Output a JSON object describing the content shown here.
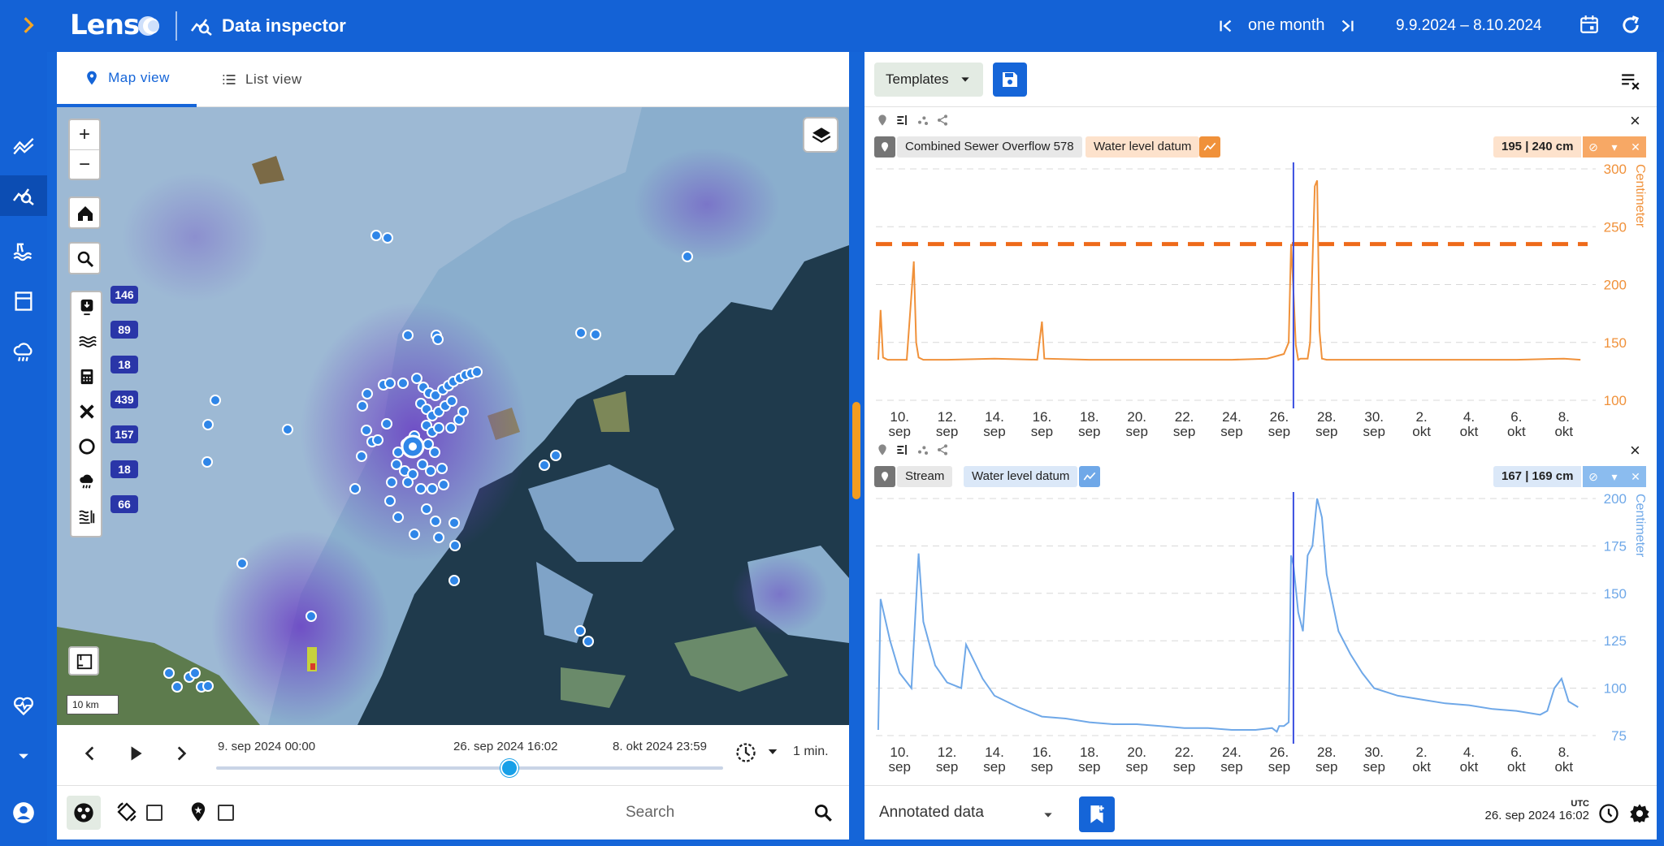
{
  "header": {
    "app_name": "Lens",
    "module_title": "Data inspector",
    "period_label": "one month",
    "date_range": "9.9.2024 – 8.10.2024"
  },
  "sidebar": {
    "items": [
      {
        "icon": "expand-chevron-icon"
      },
      {
        "icon": "trend-icon"
      },
      {
        "icon": "data-inspector-icon",
        "active": true
      },
      {
        "icon": "water-icon"
      },
      {
        "icon": "panel-icon"
      },
      {
        "icon": "rain-cloud-icon"
      },
      {
        "icon": "health-icon"
      },
      {
        "icon": "dropdown-icon"
      },
      {
        "icon": "account-icon"
      }
    ]
  },
  "left": {
    "tabs": [
      {
        "label": "Map view",
        "active": true
      },
      {
        "label": "List view",
        "active": false
      }
    ],
    "map": {
      "zoom_in": "+",
      "zoom_out": "−",
      "layer_counts": [
        "146",
        "89",
        "18",
        "439",
        "157",
        "18",
        "66"
      ],
      "scale": "10 km"
    },
    "timeline": {
      "start": "9. sep 2024 00:00",
      "current": "26. sep 2024 16:02",
      "end": "8. okt 2024 23:59",
      "position": 0.58,
      "step": "1 min."
    },
    "search_placeholder": "Search"
  },
  "right": {
    "templates_label": "Templates",
    "charts": [
      {
        "station": "Combined Sewer Overflow 578",
        "parameter": "Water level datum",
        "readout": "195 | 240 cm",
        "color": "#f0913a",
        "unit": "Centimeter"
      },
      {
        "station": "Stream",
        "parameter": "Water level datum",
        "readout": "167 | 169 cm",
        "color": "#6fa8e8",
        "unit": "Centimeter"
      }
    ],
    "annotated_label": "Annotated data",
    "tz": "UTC",
    "current_time": "26. sep 2024 16:02"
  },
  "chart_data": [
    {
      "type": "line",
      "ylabel": "Centimeter",
      "ylim": [
        100,
        300
      ],
      "yticks": [
        100,
        150,
        200,
        250,
        300
      ],
      "xticks": [
        "10. sep",
        "12. sep",
        "14. sep",
        "16. sep",
        "18. sep",
        "20. sep",
        "22. sep",
        "24. sep",
        "26. sep",
        "28. sep",
        "30. sep",
        "2. okt",
        "4. okt",
        "6. okt",
        "8. okt"
      ],
      "threshold": 235,
      "grid": true,
      "series": [
        {
          "x": [
            9.1,
            9.2,
            9.3,
            9.5,
            10.0,
            10.3,
            10.6,
            10.7,
            10.8,
            11.0,
            12.0,
            14.0,
            15.8,
            16.0,
            16.1,
            18.0,
            20.0,
            22.0,
            24.0,
            25.5,
            26.2,
            26.4,
            26.5,
            26.6,
            26.7,
            26.8,
            26.9,
            27.2,
            27.3,
            27.5,
            27.6,
            27.7,
            27.8,
            28.0,
            30.0,
            32.0,
            34.0,
            36.0,
            38.0,
            38.7
          ],
          "y": [
            135,
            178,
            137,
            135,
            135,
            135,
            220,
            150,
            137,
            135,
            135,
            136,
            135,
            168,
            136,
            135,
            135,
            135,
            135,
            136,
            140,
            150,
            235,
            195,
            148,
            135,
            136,
            136,
            150,
            285,
            290,
            160,
            136,
            135,
            135,
            135,
            135,
            135,
            136,
            135
          ]
        }
      ]
    },
    {
      "type": "line",
      "ylabel": "Centimeter",
      "ylim": [
        75,
        200
      ],
      "yticks": [
        75,
        100,
        125,
        150,
        175,
        200
      ],
      "xticks": [
        "10. sep",
        "12. sep",
        "14. sep",
        "16. sep",
        "18. sep",
        "20. sep",
        "22. sep",
        "24. sep",
        "26. sep",
        "28. sep",
        "30. sep",
        "2. okt",
        "4. okt",
        "6. okt",
        "8. okt"
      ],
      "grid": true,
      "series": [
        {
          "x": [
            9.1,
            9.2,
            9.6,
            10.0,
            10.5,
            10.8,
            11.0,
            11.5,
            12.0,
            12.6,
            12.8,
            13.5,
            14.0,
            15.0,
            16.0,
            17.0,
            18.0,
            19.0,
            20.0,
            21.0,
            22.0,
            23.0,
            24.0,
            25.0,
            25.7,
            25.9,
            26.0,
            26.2,
            26.4,
            26.5,
            26.6,
            26.8,
            27.0,
            27.2,
            27.4,
            27.6,
            27.8,
            28.0,
            28.5,
            29.0,
            29.5,
            30.0,
            31.0,
            32.0,
            33.0,
            34.0,
            35.0,
            36.0,
            37.0,
            37.3,
            37.6,
            37.9,
            38.2,
            38.6
          ],
          "y": [
            78,
            147,
            125,
            108,
            100,
            171,
            135,
            112,
            103,
            100,
            123,
            105,
            96,
            90,
            85,
            84,
            82,
            81,
            81,
            80,
            79,
            79,
            78,
            78,
            79,
            77,
            80,
            80,
            82,
            170,
            165,
            140,
            130,
            170,
            175,
            200,
            190,
            160,
            130,
            118,
            108,
            100,
            96,
            94,
            92,
            91,
            89,
            88,
            86,
            88,
            100,
            105,
            93,
            90
          ]
        }
      ]
    }
  ]
}
